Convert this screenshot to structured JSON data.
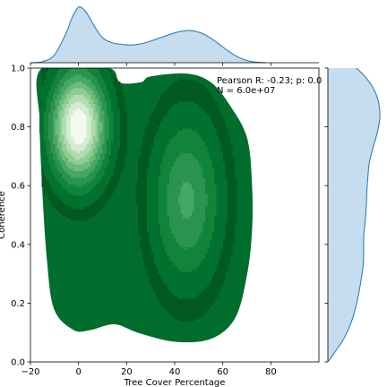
{
  "chart_data": {
    "type": "kde_joint",
    "xlabel": "Tree Cover Percentage",
    "ylabel": "Coherence",
    "xlim": [
      -20,
      100
    ],
    "ylim": [
      0,
      1
    ],
    "x_ticks": [
      -20,
      0,
      20,
      40,
      60,
      80
    ],
    "y_ticks": [
      0.0,
      0.2,
      0.4,
      0.6,
      0.8,
      1.0
    ],
    "x_tick_labels": [
      "−20",
      "0",
      "20",
      "40",
      "60",
      "80"
    ],
    "y_tick_labels": [
      "0.0",
      "0.2",
      "0.4",
      "0.6",
      "0.8",
      "1.0"
    ],
    "annotation": [
      "Pearson R: -0.23; p: 0.0",
      "N = 6.0e+07"
    ],
    "joint_kde": {
      "colormap": "Greens",
      "outer_color": "#006d2c",
      "levels": [
        {
          "level": 0.0,
          "color": "#00591f"
        },
        {
          "level": 0.1,
          "color": "#00712e"
        },
        {
          "level": 0.2,
          "color": "#11843a"
        },
        {
          "level": 0.3,
          "color": "#2a9350"
        },
        {
          "level": 0.4,
          "color": "#46a664"
        },
        {
          "level": 0.5,
          "color": "#6bbb7a"
        },
        {
          "level": 0.6,
          "color": "#90cd95"
        },
        {
          "level": 0.7,
          "color": "#b2dcb1"
        },
        {
          "level": 0.8,
          "color": "#d3ecd0"
        },
        {
          "level": 0.9,
          "color": "#f2faf0"
        }
      ],
      "modes": [
        {
          "x": 0,
          "y": 0.8,
          "sx": 8,
          "sy": 0.13,
          "weight": 1.0
        },
        {
          "x": 45,
          "y": 0.55,
          "sx": 10,
          "sy": 0.2,
          "weight": 0.42
        }
      ],
      "support_outline": [
        [
          -15,
          1.0
        ],
        [
          12,
          1.0
        ],
        [
          17,
          0.95
        ],
        [
          26,
          0.95
        ],
        [
          30,
          0.97
        ],
        [
          45,
          0.98
        ],
        [
          55,
          0.95
        ],
        [
          63,
          0.87
        ],
        [
          70,
          0.76
        ],
        [
          72,
          0.6
        ],
        [
          72,
          0.45
        ],
        [
          70,
          0.3
        ],
        [
          65,
          0.15
        ],
        [
          55,
          0.08
        ],
        [
          40,
          0.07
        ],
        [
          25,
          0.1
        ],
        [
          15,
          0.13
        ],
        [
          5,
          0.11
        ],
        [
          -2,
          0.11
        ],
        [
          -10,
          0.18
        ],
        [
          -13,
          0.35
        ],
        [
          -15,
          0.6
        ],
        [
          -16,
          0.82
        ]
      ]
    },
    "x_marginal": {
      "x": [
        -20,
        -15,
        -10,
        -5,
        -3,
        0,
        3,
        6,
        10,
        14,
        18,
        22,
        26,
        30,
        34,
        38,
        42,
        46,
        50,
        54,
        58,
        62,
        66,
        70,
        74,
        78
      ],
      "density": [
        0.0,
        0.02,
        0.14,
        0.55,
        0.78,
        1.0,
        0.92,
        0.7,
        0.45,
        0.36,
        0.33,
        0.32,
        0.34,
        0.39,
        0.45,
        0.51,
        0.56,
        0.58,
        0.55,
        0.47,
        0.35,
        0.22,
        0.11,
        0.04,
        0.01,
        0.0
      ],
      "fill": "#c6dcef",
      "line": "#1f77b4"
    },
    "y_marginal": {
      "y": [
        0.0,
        0.03,
        0.08,
        0.15,
        0.22,
        0.28,
        0.33,
        0.38,
        0.43,
        0.48,
        0.53,
        0.58,
        0.63,
        0.68,
        0.73,
        0.78,
        0.83,
        0.88,
        0.93,
        0.97,
        1.0
      ],
      "density": [
        0.0,
        0.12,
        0.31,
        0.48,
        0.58,
        0.64,
        0.68,
        0.69,
        0.69,
        0.72,
        0.74,
        0.75,
        0.77,
        0.8,
        0.87,
        0.95,
        1.0,
        0.98,
        0.88,
        0.72,
        0.55
      ],
      "fill": "#c6dcef",
      "line": "#1f77b4"
    }
  }
}
